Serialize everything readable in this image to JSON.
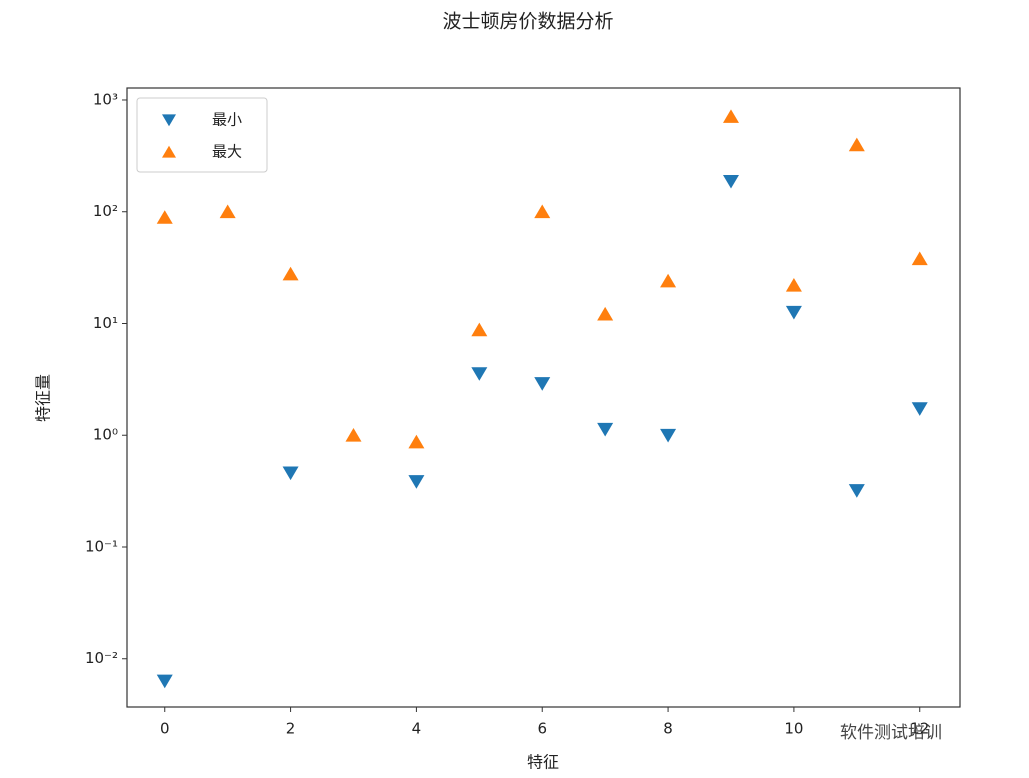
{
  "chart_data": {
    "type": "scatter",
    "title": "波士顿房价数据分析",
    "x_label": "特征",
    "y_label": "特征量",
    "x": [
      0,
      1,
      2,
      3,
      4,
      5,
      6,
      7,
      8,
      9,
      10,
      11,
      12
    ],
    "series": [
      {
        "name": "最小",
        "color": "#1f77b4",
        "marker": "triangle-down",
        "values": [
          0.00632,
          null,
          0.46,
          null,
          0.385,
          3.561,
          2.9,
          1.1296,
          1,
          187,
          12.6,
          0.32,
          1.73
        ]
      },
      {
        "name": "最大",
        "color": "#ff7f0e",
        "marker": "triangle-up",
        "values": [
          88.98,
          100,
          27.74,
          1,
          0.871,
          8.78,
          100,
          12.13,
          24,
          711,
          22,
          396.9,
          37.97
        ]
      }
    ],
    "xlim": [
      -0.6,
      12.64
    ],
    "xticks": [
      0,
      2,
      4,
      6,
      8,
      10,
      12
    ],
    "ylim": [
      0.0037,
      1280
    ],
    "log_y": true,
    "yticks": [
      {
        "value": 0.01,
        "label": "10⁻²"
      },
      {
        "value": 0.1,
        "label": "10⁻¹"
      },
      {
        "value": 1,
        "label": "10⁰"
      },
      {
        "value": 10,
        "label": "10¹"
      },
      {
        "value": 100,
        "label": "10²"
      },
      {
        "value": 1000,
        "label": "10³"
      }
    ],
    "legend": "upper left",
    "grid": false,
    "watermark": "软件测试培训"
  }
}
